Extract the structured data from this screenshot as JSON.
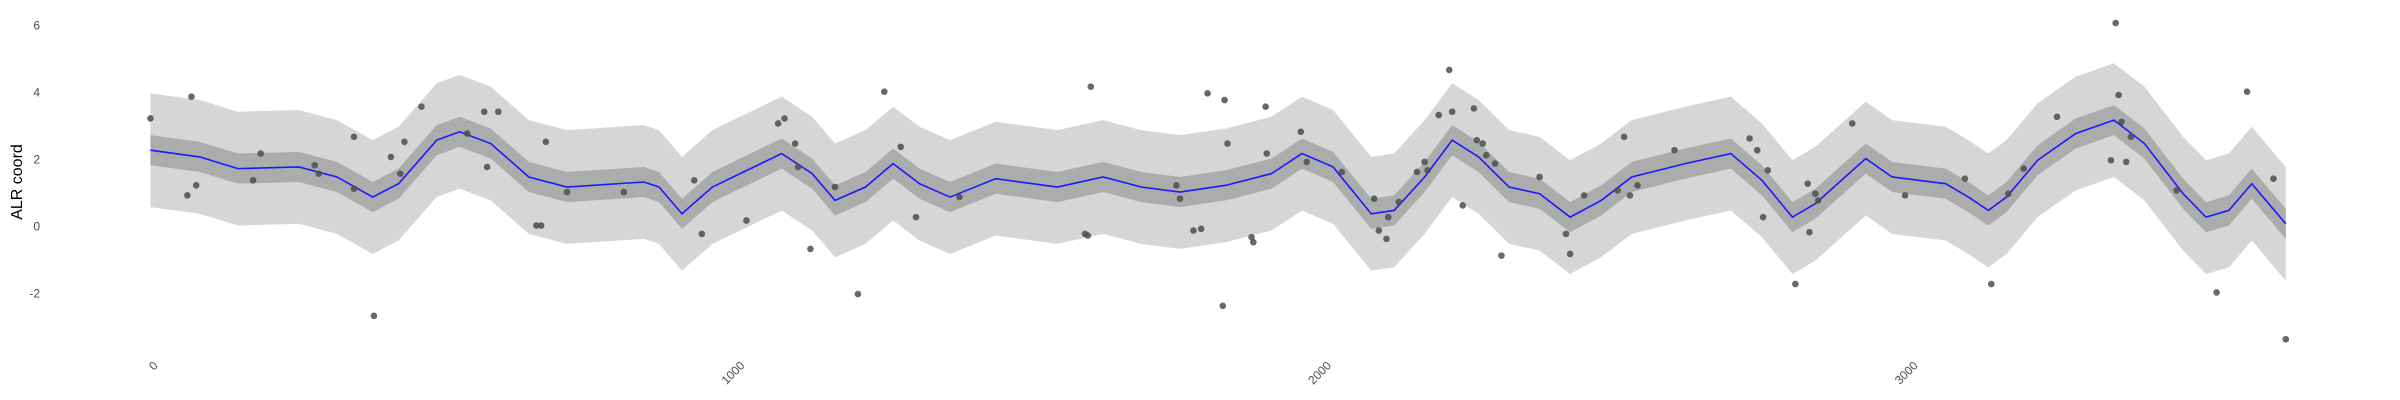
{
  "chart_data": {
    "type": "line",
    "y_label": "ALR coord",
    "xlim": [
      -178,
      3804
    ],
    "ylim": [
      -3.85,
      6.55
    ],
    "xticks": [
      0,
      1000,
      2000,
      3000
    ],
    "yticks": [
      -2,
      0,
      2,
      4,
      6
    ],
    "grid": true,
    "x": [
      0,
      84,
      149,
      253,
      318,
      379,
      423,
      488,
      527,
      580,
      645,
      710,
      841,
      867,
      906,
      958,
      1076,
      1128,
      1167,
      1219,
      1266,
      1311,
      1363,
      1441,
      1546,
      1624,
      1689,
      1755,
      1833,
      1911,
      1963,
      2016,
      2081,
      2120,
      2172,
      2219,
      2264,
      2316,
      2368,
      2420,
      2473,
      2525,
      2616,
      2694,
      2747,
      2799,
      2838,
      2924,
      2969,
      3060,
      3099,
      3133,
      3164,
      3217,
      3282,
      3347,
      3399,
      3465,
      3504,
      3543,
      3582,
      3640
    ],
    "line": {
      "color": "#1a1aff",
      "values": [
        2.3,
        2.1,
        1.75,
        1.8,
        1.5,
        0.9,
        1.3,
        2.6,
        2.85,
        2.5,
        1.5,
        1.2,
        1.35,
        1.2,
        0.4,
        1.2,
        2.2,
        1.6,
        0.8,
        1.2,
        1.9,
        1.3,
        0.9,
        1.45,
        1.2,
        1.5,
        1.2,
        1.05,
        1.25,
        1.6,
        2.2,
        1.8,
        0.4,
        0.5,
        1.5,
        2.6,
        2.1,
        1.2,
        1.0,
        0.3,
        0.8,
        1.5,
        1.9,
        2.2,
        1.4,
        0.3,
        0.7,
        2.05,
        1.5,
        1.3,
        0.9,
        0.5,
        0.9,
        2.0,
        2.8,
        3.2,
        2.5,
        1.0,
        0.3,
        0.5,
        1.3,
        0.1
      ]
    },
    "band_inner": {
      "color": "#acacac",
      "lower": [
        1.85,
        1.65,
        1.3,
        1.35,
        1.05,
        0.45,
        0.85,
        2.15,
        2.4,
        2.05,
        1.05,
        0.75,
        0.9,
        0.75,
        -0.05,
        0.75,
        1.75,
        1.15,
        0.35,
        0.75,
        1.45,
        0.85,
        0.45,
        1.0,
        0.75,
        1.05,
        0.75,
        0.6,
        0.8,
        1.15,
        1.75,
        1.35,
        -0.05,
        0.05,
        1.05,
        2.15,
        1.65,
        0.75,
        0.55,
        -0.15,
        0.35,
        1.05,
        1.45,
        1.75,
        0.95,
        -0.15,
        0.25,
        1.6,
        1.05,
        0.85,
        0.45,
        0.05,
        0.45,
        1.55,
        2.35,
        2.75,
        2.05,
        0.55,
        -0.15,
        0.05,
        0.85,
        -0.35
      ],
      "upper": [
        2.75,
        2.55,
        2.2,
        2.25,
        1.95,
        1.35,
        1.75,
        3.05,
        3.3,
        2.95,
        1.95,
        1.65,
        1.8,
        1.65,
        0.85,
        1.65,
        2.65,
        2.05,
        1.25,
        1.65,
        2.35,
        1.75,
        1.35,
        1.9,
        1.65,
        1.95,
        1.65,
        1.5,
        1.7,
        2.05,
        2.65,
        2.25,
        0.85,
        0.95,
        1.95,
        3.05,
        2.55,
        1.65,
        1.45,
        0.75,
        1.25,
        1.95,
        2.35,
        2.65,
        1.85,
        0.75,
        1.15,
        2.5,
        1.95,
        1.75,
        1.35,
        0.95,
        1.35,
        2.45,
        3.25,
        3.65,
        2.95,
        1.45,
        0.75,
        0.95,
        1.75,
        0.55
      ]
    },
    "band_outer": {
      "color": "#d6d6d6",
      "lower": [
        0.6,
        0.4,
        0.05,
        0.1,
        -0.2,
        -0.8,
        -0.4,
        0.9,
        1.15,
        0.8,
        -0.2,
        -0.5,
        -0.35,
        -0.5,
        -1.3,
        -0.5,
        0.5,
        -0.1,
        -0.9,
        -0.5,
        0.2,
        -0.4,
        -0.8,
        -0.25,
        -0.5,
        -0.2,
        -0.5,
        -0.65,
        -0.45,
        -0.1,
        0.5,
        0.1,
        -1.3,
        -1.2,
        -0.2,
        0.9,
        0.4,
        -0.5,
        -0.7,
        -1.4,
        -0.9,
        -0.2,
        0.2,
        0.5,
        -0.3,
        -1.4,
        -1.0,
        0.35,
        -0.2,
        -0.4,
        -0.8,
        -1.2,
        -0.8,
        0.3,
        1.1,
        1.5,
        0.8,
        -0.7,
        -1.4,
        -1.2,
        -0.4,
        -1.6
      ],
      "upper": [
        4.0,
        3.8,
        3.45,
        3.5,
        3.2,
        2.6,
        3.0,
        4.3,
        4.55,
        4.2,
        3.2,
        2.9,
        3.05,
        2.9,
        2.1,
        2.9,
        3.9,
        3.3,
        2.5,
        2.9,
        3.6,
        3.0,
        2.6,
        3.15,
        2.9,
        3.2,
        2.9,
        2.75,
        2.95,
        3.3,
        3.9,
        3.5,
        2.1,
        2.2,
        3.2,
        4.3,
        3.8,
        2.9,
        2.7,
        2.0,
        2.5,
        3.2,
        3.6,
        3.9,
        3.1,
        2.0,
        2.4,
        3.75,
        3.2,
        3.0,
        2.6,
        2.2,
        2.6,
        3.7,
        4.5,
        4.9,
        4.2,
        2.7,
        2.0,
        2.2,
        3.0,
        1.8
      ]
    },
    "points": {
      "color": "#4d4d4d",
      "x": [
        0,
        70,
        63,
        78,
        175,
        188,
        280,
        287,
        347,
        347,
        381,
        410,
        426,
        433,
        462,
        540,
        569,
        574,
        593,
        658,
        666,
        674,
        710,
        807,
        927,
        940,
        1016,
        1070,
        1081,
        1099,
        1104,
        1125,
        1167,
        1206,
        1251,
        1279,
        1305,
        1379,
        1593,
        1598,
        1603,
        1749,
        1755,
        1778,
        1791,
        1802,
        1831,
        1836,
        1828,
        1877,
        1880,
        1901,
        1903,
        1961,
        1971,
        2031,
        2086,
        2094,
        2107,
        2110,
        2128,
        2159,
        2172,
        2177,
        2196,
        2214,
        2219,
        2237,
        2256,
        2261,
        2271,
        2277,
        2292,
        2303,
        2368,
        2413,
        2420,
        2444,
        2501,
        2512,
        2522,
        2535,
        2598,
        2726,
        2739,
        2749,
        2757,
        2804,
        2825,
        2828,
        2838,
        2843,
        2901,
        2991,
        3093,
        3138,
        3167,
        3193,
        3250,
        3342,
        3350,
        3355,
        3360,
        3368,
        3376,
        3454,
        3522,
        3574,
        3619,
        3640
      ],
      "y": [
        3.25,
        3.9,
        0.95,
        1.25,
        1.4,
        2.2,
        1.85,
        1.6,
        2.7,
        1.15,
        -2.65,
        2.1,
        1.6,
        2.55,
        3.6,
        2.8,
        3.45,
        1.8,
        3.45,
        0.05,
        0.05,
        2.55,
        1.05,
        1.05,
        1.4,
        -0.2,
        0.2,
        3.1,
        3.25,
        2.5,
        1.8,
        -0.65,
        1.2,
        -2.0,
        4.05,
        2.4,
        0.3,
        0.9,
        -0.2,
        -0.25,
        4.2,
        1.25,
        0.85,
        -0.1,
        -0.05,
        4.0,
        3.8,
        2.5,
        -2.35,
        -0.3,
        -0.45,
        3.6,
        2.2,
        2.85,
        1.95,
        1.65,
        0.85,
        -0.1,
        -0.35,
        0.3,
        0.75,
        1.65,
        1.95,
        1.7,
        3.35,
        4.7,
        3.45,
        0.65,
        3.55,
        2.6,
        2.5,
        2.15,
        1.9,
        -0.85,
        1.5,
        -0.2,
        -0.8,
        0.95,
        1.1,
        2.7,
        0.95,
        1.25,
        2.3,
        2.65,
        2.3,
        0.3,
        1.7,
        -1.7,
        1.3,
        -0.15,
        1.0,
        0.8,
        3.1,
        0.95,
        1.45,
        -1.7,
        1.0,
        1.75,
        3.3,
        2.0,
        6.1,
        3.95,
        3.15,
        1.95,
        2.7,
        1.1,
        -1.95,
        4.05,
        1.45,
        -3.35
      ]
    }
  }
}
